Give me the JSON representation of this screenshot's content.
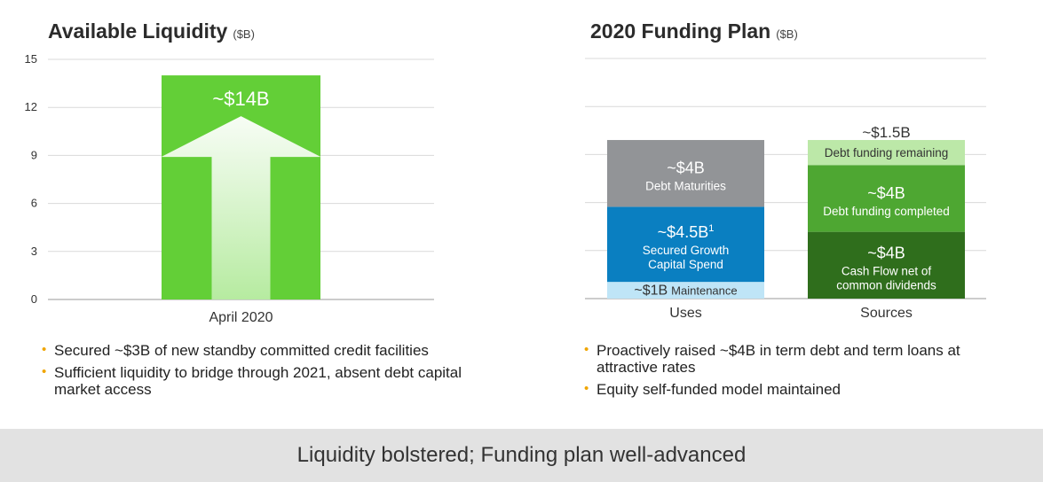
{
  "left_panel": {
    "title": "Available Liquidity",
    "unit": "($B)",
    "bullets": [
      "Secured ~$3B of new standby committed credit facilities",
      "Sufficient liquidity to bridge through 2021, absent debt capital market access"
    ]
  },
  "right_panel": {
    "title": "2020 Funding Plan",
    "unit": "($B)",
    "bullets": [
      "Proactively raised ~$4B in term debt and term loans at attractive rates",
      "Equity self-funded model maintained"
    ]
  },
  "footer": "Liquidity bolstered; Funding plan well-advanced",
  "colors": {
    "liquidity_bar": "#63cf37",
    "arrow": "#b6eba0",
    "debt_maturities": "#929497",
    "secured_growth": "#0a7fc1",
    "maintenance": "#bfe5f7",
    "debt_remaining": "#bce8a8",
    "debt_completed": "#4ea732",
    "cash_flow": "#2f6e1c",
    "bullet_dot": "#f0a500"
  },
  "chart_data": [
    {
      "type": "bar",
      "title": "Available Liquidity",
      "categories": [
        "April 2020"
      ],
      "values": [
        14
      ],
      "data_labels": [
        "~$14B"
      ],
      "yticks": [
        "0",
        "3",
        "6",
        "9",
        "12",
        "15"
      ],
      "ylim": [
        0,
        15
      ],
      "grid": true
    },
    {
      "type": "bar",
      "stacked": true,
      "title": "2020 Funding Plan",
      "categories": [
        "Uses",
        "Sources"
      ],
      "grid": true,
      "scale_max": 9.5,
      "stacks": [
        {
          "category": "Uses",
          "segments": [
            {
              "amount": "~$1B",
              "label": "Maintenance",
              "value": 1,
              "color": "#bfe5f7",
              "text_color": "#333333",
              "inline": true
            },
            {
              "amount": "~$4.5B",
              "superscript": "1",
              "label": "Secured Growth\nCapital Spend",
              "value": 4.5,
              "color": "#0a7fc1",
              "text_color": "#ffffff"
            },
            {
              "amount": "~$4B",
              "label": "Debt Maturities",
              "value": 4,
              "color": "#929497",
              "text_color": "#ffffff"
            }
          ]
        },
        {
          "category": "Sources",
          "segments": [
            {
              "amount": "~$4B",
              "label": "Cash Flow net of\ncommon dividends",
              "value": 4,
              "color": "#2f6e1c",
              "text_color": "#ffffff"
            },
            {
              "amount": "~$4B",
              "label": "Debt funding completed",
              "value": 4,
              "color": "#4ea732",
              "text_color": "#ffffff"
            },
            {
              "amount": "~$1.5B",
              "label": "Debt funding remaining",
              "value": 1.5,
              "color": "#bce8a8",
              "text_color": "#333333",
              "amount_above": true
            }
          ]
        }
      ]
    }
  ]
}
